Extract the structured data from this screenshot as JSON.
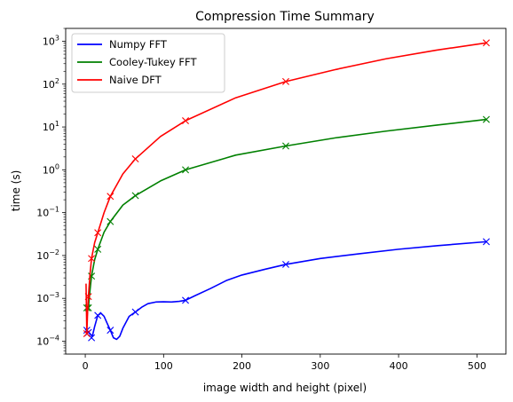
{
  "chart_data": {
    "type": "line",
    "title": "Compression Time Summary",
    "xlabel": "image width and height (pixel)",
    "ylabel": "time (s)",
    "yscale": "log",
    "xlim": [
      -25,
      537
    ],
    "ylim": [
      5e-05,
      2000
    ],
    "x_ticks": [
      0,
      100,
      200,
      300,
      400,
      500
    ],
    "x_tick_labels": [
      "0",
      "100",
      "200",
      "300",
      "400",
      "500"
    ],
    "y_ticks": [
      0.0001,
      0.001,
      0.01,
      0.1,
      1,
      10,
      100,
      1000
    ],
    "y_tick_labels": [
      "10^-4",
      "10^-3",
      "10^-2",
      "10^-1",
      "10^0",
      "10^1",
      "10^2",
      "10^3"
    ],
    "grid": false,
    "legend_position": "top-left",
    "marker": "x",
    "series": [
      {
        "name": "Numpy FFT",
        "color": "#0000ff",
        "markers": [
          [
            2,
            0.00018
          ],
          [
            4,
            0.00016
          ],
          [
            8,
            0.00012
          ],
          [
            16,
            0.0004
          ],
          [
            32,
            0.00018
          ],
          [
            64,
            0.00048
          ],
          [
            128,
            0.0009
          ],
          [
            256,
            0.0062
          ],
          [
            512,
            0.021
          ]
        ],
        "curve": [
          [
            2,
            0.00018
          ],
          [
            6,
            0.00015
          ],
          [
            9,
            0.00013
          ],
          [
            12,
            0.00022
          ],
          [
            16,
            0.0004
          ],
          [
            20,
            0.00045
          ],
          [
            24,
            0.00038
          ],
          [
            28,
            0.00026
          ],
          [
            32,
            0.00018
          ],
          [
            36,
            0.00012
          ],
          [
            40,
            0.00011
          ],
          [
            44,
            0.00013
          ],
          [
            48,
            0.0002
          ],
          [
            56,
            0.00038
          ],
          [
            64,
            0.00048
          ],
          [
            72,
            0.00062
          ],
          [
            80,
            0.00075
          ],
          [
            90,
            0.00082
          ],
          [
            100,
            0.00083
          ],
          [
            110,
            0.00082
          ],
          [
            120,
            0.00085
          ],
          [
            128,
            0.0009
          ],
          [
            140,
            0.00115
          ],
          [
            160,
            0.0017
          ],
          [
            180,
            0.0026
          ],
          [
            200,
            0.0035
          ],
          [
            230,
            0.0048
          ],
          [
            256,
            0.0062
          ],
          [
            300,
            0.0085
          ],
          [
            350,
            0.011
          ],
          [
            400,
            0.014
          ],
          [
            450,
            0.017
          ],
          [
            512,
            0.021
          ]
        ]
      },
      {
        "name": "Cooley-Tukey FFT",
        "color": "#008000",
        "markers": [
          [
            2,
            0.0006
          ],
          [
            4,
            0.0006
          ],
          [
            8,
            0.0033
          ],
          [
            16,
            0.014
          ],
          [
            32,
            0.062
          ],
          [
            64,
            0.25
          ],
          [
            128,
            1.0
          ],
          [
            256,
            3.6
          ],
          [
            512,
            15
          ]
        ],
        "curve": [
          [
            2,
            0.0003
          ],
          [
            3,
            0.00055
          ],
          [
            4,
            0.0006
          ],
          [
            6,
            0.0015
          ],
          [
            8,
            0.0033
          ],
          [
            12,
            0.008
          ],
          [
            16,
            0.014
          ],
          [
            24,
            0.035
          ],
          [
            32,
            0.062
          ],
          [
            48,
            0.15
          ],
          [
            64,
            0.25
          ],
          [
            96,
            0.55
          ],
          [
            128,
            1.0
          ],
          [
            192,
            2.2
          ],
          [
            256,
            3.6
          ],
          [
            320,
            5.6
          ],
          [
            384,
            8.0
          ],
          [
            448,
            11
          ],
          [
            512,
            15
          ]
        ]
      },
      {
        "name": "Naive DFT",
        "color": "#ff0000",
        "markers": [
          [
            2,
            0.00015
          ],
          [
            4,
            0.0011
          ],
          [
            8,
            0.0085
          ],
          [
            16,
            0.034
          ],
          [
            32,
            0.24
          ],
          [
            64,
            1.8
          ],
          [
            128,
            14
          ],
          [
            256,
            115
          ],
          [
            512,
            920
          ]
        ],
        "curve": [
          [
            1,
            0.0022
          ],
          [
            2,
            0.00015
          ],
          [
            3,
            0.0005
          ],
          [
            4,
            0.0011
          ],
          [
            6,
            0.0035
          ],
          [
            8,
            0.0085
          ],
          [
            12,
            0.02
          ],
          [
            16,
            0.034
          ],
          [
            24,
            0.1
          ],
          [
            32,
            0.24
          ],
          [
            48,
            0.8
          ],
          [
            64,
            1.8
          ],
          [
            96,
            6
          ],
          [
            128,
            14
          ],
          [
            192,
            48
          ],
          [
            256,
            115
          ],
          [
            320,
            220
          ],
          [
            384,
            390
          ],
          [
            448,
            620
          ],
          [
            512,
            920
          ]
        ]
      }
    ]
  }
}
